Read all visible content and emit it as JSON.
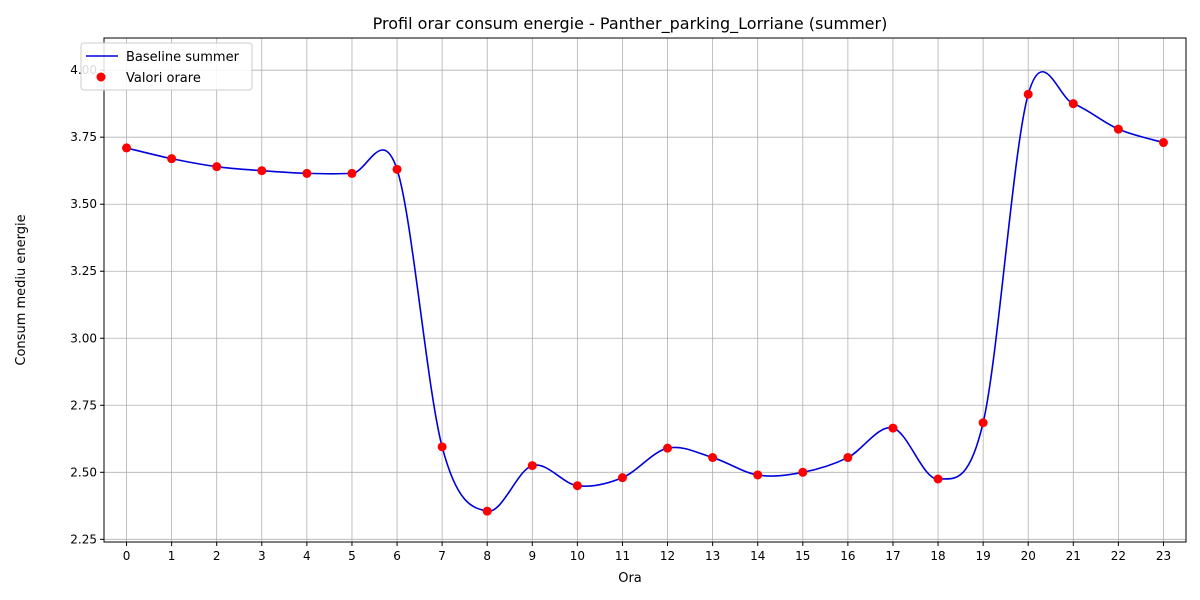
{
  "chart_data": {
    "type": "line",
    "title": "Profil orar consum energie - Panther_parking_Lorriane (summer)",
    "xlabel": "Ora",
    "ylabel": "Consum mediu energie",
    "x": [
      0,
      1,
      2,
      3,
      4,
      5,
      6,
      7,
      8,
      9,
      10,
      11,
      12,
      13,
      14,
      15,
      16,
      17,
      18,
      19,
      20,
      21,
      22,
      23
    ],
    "xlim": [
      -0.5,
      23.5
    ],
    "ylim": [
      2.24,
      4.12
    ],
    "y_ticks": [
      "2.25",
      "2.50",
      "2.75",
      "3.00",
      "3.25",
      "3.50",
      "3.75",
      "4.00"
    ],
    "x_ticks": [
      "0",
      "1",
      "2",
      "3",
      "4",
      "5",
      "6",
      "7",
      "8",
      "9",
      "10",
      "11",
      "12",
      "13",
      "14",
      "15",
      "16",
      "17",
      "18",
      "19",
      "20",
      "21",
      "22",
      "23"
    ],
    "grid": true,
    "legend_position": "upper-left",
    "series": [
      {
        "name": "Baseline summer",
        "kind": "line",
        "color": "#0000dd",
        "values": [
          3.71,
          3.67,
          3.64,
          3.625,
          3.615,
          3.615,
          3.63,
          2.595,
          2.355,
          2.525,
          2.45,
          2.48,
          2.59,
          2.555,
          2.49,
          2.5,
          2.555,
          2.665,
          2.475,
          2.685,
          3.91,
          3.875,
          3.78,
          3.73
        ]
      },
      {
        "name": "Valori orare",
        "kind": "scatter",
        "color": "#ff0000",
        "values": [
          3.71,
          3.67,
          3.64,
          3.625,
          3.615,
          3.615,
          3.63,
          2.595,
          2.355,
          2.525,
          2.45,
          2.48,
          2.59,
          2.555,
          2.49,
          2.5,
          2.555,
          2.665,
          2.475,
          2.685,
          3.91,
          3.875,
          3.78,
          3.73
        ]
      }
    ]
  }
}
